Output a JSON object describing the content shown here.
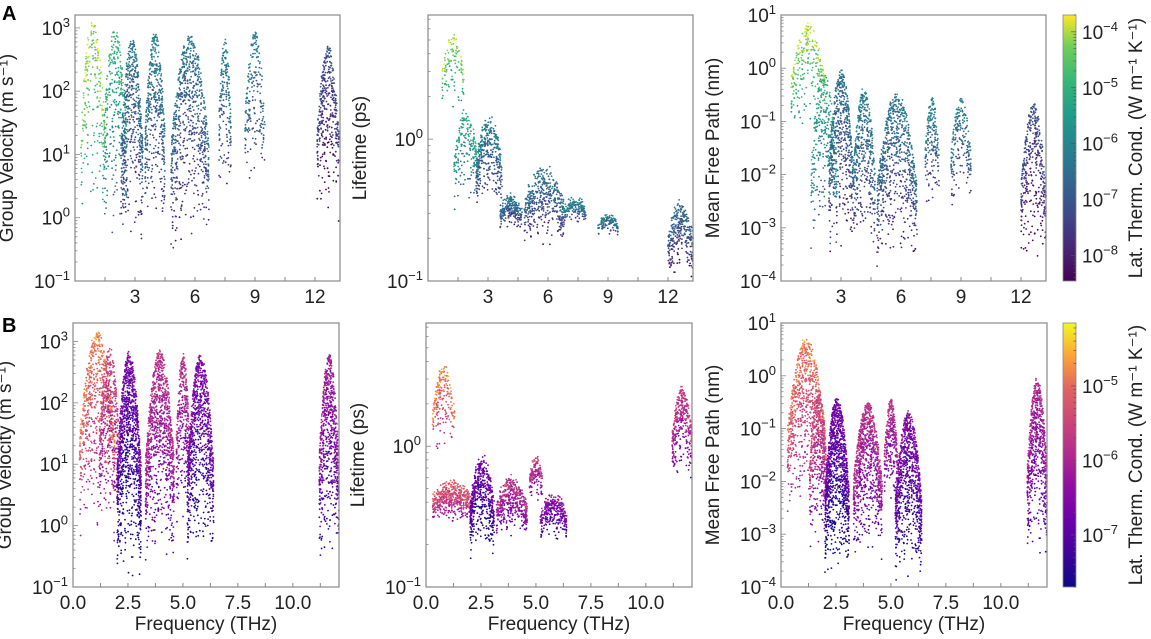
{
  "figure": {
    "panel_labels": [
      "A",
      "B"
    ]
  },
  "chart_data": [
    {
      "id": "A-velocity",
      "row": "A",
      "type": "scatter",
      "colormap": "viridis",
      "xlabel": "",
      "ylabel": "Group Velocity (m s⁻¹)",
      "xscale": "linear",
      "yscale": "log",
      "xlim": [
        0,
        13.25
      ],
      "ylim": [
        0.1,
        1600
      ],
      "xticks": [
        3,
        6,
        9,
        12
      ],
      "xtick_labels": [
        "3",
        "6",
        "9",
        "12"
      ],
      "yticks": [
        0.1,
        1,
        10,
        100,
        1000
      ],
      "ytick_labels": [
        [
          "10",
          "−1"
        ],
        [
          "10",
          "0"
        ],
        [
          "10",
          "1"
        ],
        [
          "10",
          "2"
        ],
        [
          "10",
          "3"
        ]
      ],
      "clusters": [
        {
          "x": [
            0.3,
            1.5
          ],
          "ymin": 0.6,
          "ymax": 1600,
          "peak": 1400,
          "c": 0.95,
          "n": 220
        },
        {
          "x": [
            1.4,
            2.6
          ],
          "ymin": 0.4,
          "ymax": 1300,
          "peak": 900,
          "c": 0.75,
          "n": 320
        },
        {
          "x": [
            2.3,
            3.4
          ],
          "ymin": 0.25,
          "ymax": 1000,
          "peak": 600,
          "c": 0.45,
          "n": 520
        },
        {
          "x": [
            3.5,
            4.5
          ],
          "ymin": 0.5,
          "ymax": 1300,
          "peak": 800,
          "c": 0.5,
          "n": 420
        },
        {
          "x": [
            4.8,
            6.7
          ],
          "ymin": 0.2,
          "ymax": 1100,
          "peak": 700,
          "c": 0.45,
          "n": 720
        },
        {
          "x": [
            7.2,
            7.8
          ],
          "ymin": 2,
          "ymax": 800,
          "peak": 700,
          "c": 0.5,
          "n": 180
        },
        {
          "x": [
            8.5,
            9.5
          ],
          "ymin": 2,
          "ymax": 900,
          "peak": 850,
          "c": 0.5,
          "n": 200
        },
        {
          "x": [
            12.1,
            13.2
          ],
          "ymin": 0.8,
          "ymax": 650,
          "peak": 500,
          "c": 0.3,
          "n": 380
        }
      ]
    },
    {
      "id": "A-lifetime",
      "row": "A",
      "type": "scatter",
      "colormap": "viridis",
      "xlabel": "",
      "ylabel": "Lifetime (ps)",
      "xscale": "linear",
      "yscale": "log",
      "xlim": [
        0,
        13.25
      ],
      "ylim": [
        0.1,
        7.5
      ],
      "xticks": [
        3,
        6,
        9,
        12
      ],
      "xtick_labels": [
        "3",
        "6",
        "9",
        "12"
      ],
      "yticks": [
        0.1,
        1
      ],
      "ytick_labels": [
        [
          "10",
          "−1"
        ],
        [
          "10",
          "0"
        ]
      ],
      "clusters": [
        {
          "x": [
            0.7,
            1.8
          ],
          "ymin": 1.5,
          "ymax": 7,
          "peak": 5,
          "c": 0.95,
          "n": 120
        },
        {
          "x": [
            1.3,
            2.5
          ],
          "ymin": 0.3,
          "ymax": 2.2,
          "peak": 1.4,
          "c": 0.7,
          "n": 200
        },
        {
          "x": [
            2.4,
            3.7
          ],
          "ymin": 0.3,
          "ymax": 2.2,
          "peak": 1.2,
          "c": 0.5,
          "n": 360
        },
        {
          "x": [
            3.6,
            4.7
          ],
          "ymin": 0.22,
          "ymax": 0.55,
          "peak": 0.35,
          "c": 0.45,
          "n": 220
        },
        {
          "x": [
            4.8,
            6.8
          ],
          "ymin": 0.17,
          "ymax": 1.1,
          "peak": 0.5,
          "c": 0.45,
          "n": 420
        },
        {
          "x": [
            6.8,
            7.9
          ],
          "ymin": 0.25,
          "ymax": 0.5,
          "peak": 0.35,
          "c": 0.55,
          "n": 150
        },
        {
          "x": [
            8.5,
            9.5
          ],
          "ymin": 0.2,
          "ymax": 0.34,
          "peak": 0.28,
          "c": 0.5,
          "n": 120
        },
        {
          "x": [
            12.0,
            13.25
          ],
          "ymin": 0.1,
          "ymax": 0.55,
          "peak": 0.3,
          "c": 0.4,
          "n": 300
        }
      ]
    },
    {
      "id": "A-mfp",
      "row": "A",
      "type": "scatter",
      "colormap": "viridis",
      "xlabel": "",
      "ylabel": "Mean Free Path (nm)",
      "xscale": "linear",
      "yscale": "log",
      "xlim": [
        0,
        13.25
      ],
      "ylim": [
        0.0001,
        10
      ],
      "xticks": [
        3,
        6,
        9,
        12
      ],
      "xtick_labels": [
        "3",
        "6",
        "9",
        "12"
      ],
      "yticks": [
        0.0001,
        0.001,
        0.01,
        0.1,
        1,
        10
      ],
      "ytick_labels": [
        [
          "10",
          "−4"
        ],
        [
          "10",
          "−3"
        ],
        [
          "10",
          "−2"
        ],
        [
          "10",
          "−1"
        ],
        [
          "10",
          "0"
        ],
        [
          "10",
          "1"
        ]
      ],
      "clusters": [
        {
          "x": [
            0.5,
            2.2
          ],
          "ymin": 0.05,
          "ymax": 10,
          "peak": 6,
          "c": 0.95,
          "n": 260
        },
        {
          "x": [
            1.5,
            2.8
          ],
          "ymin": 0.0003,
          "ymax": 1.5,
          "peak": 0.8,
          "c": 0.7,
          "n": 300
        },
        {
          "x": [
            2.4,
            3.6
          ],
          "ymin": 0.0003,
          "ymax": 1.2,
          "peak": 0.9,
          "c": 0.45,
          "n": 520
        },
        {
          "x": [
            3.6,
            4.7
          ],
          "ymin": 0.0003,
          "ymax": 0.6,
          "peak": 0.4,
          "c": 0.5,
          "n": 420
        },
        {
          "x": [
            4.8,
            6.8
          ],
          "ymin": 0.0001,
          "ymax": 0.5,
          "peak": 0.3,
          "c": 0.45,
          "n": 720
        },
        {
          "x": [
            7.2,
            7.9
          ],
          "ymin": 0.002,
          "ymax": 0.3,
          "peak": 0.28,
          "c": 0.5,
          "n": 180
        },
        {
          "x": [
            8.5,
            9.5
          ],
          "ymin": 0.002,
          "ymax": 0.3,
          "peak": 0.28,
          "c": 0.5,
          "n": 200
        },
        {
          "x": [
            12.0,
            13.25
          ],
          "ymin": 0.00015,
          "ymax": 0.3,
          "peak": 0.2,
          "c": 0.3,
          "n": 380
        }
      ]
    },
    {
      "id": "B-velocity",
      "row": "B",
      "type": "scatter",
      "colormap": "plasma",
      "xlabel": "Frequency (THz)",
      "ylabel": "Group Velocity (m s⁻¹)",
      "xscale": "linear",
      "yscale": "log",
      "xlim": [
        0,
        12.1
      ],
      "ylim": [
        0.1,
        2000
      ],
      "xticks": [
        0,
        2.5,
        5,
        7.5,
        10
      ],
      "xtick_labels": [
        "0.0",
        "2.5",
        "5.0",
        "7.5",
        "10.0"
      ],
      "yticks": [
        0.1,
        1,
        10,
        100,
        1000
      ],
      "ytick_labels": [
        [
          "10",
          "−1"
        ],
        [
          "10",
          "0"
        ],
        [
          "10",
          "1"
        ],
        [
          "10",
          "2"
        ],
        [
          "10",
          "3"
        ]
      ],
      "clusters": [
        {
          "x": [
            0.3,
            1.9
          ],
          "ymin": 0.5,
          "ymax": 2000,
          "peak": 1300,
          "c": 0.82,
          "n": 700
        },
        {
          "x": [
            1.2,
            2.1
          ],
          "ymin": 1,
          "ymax": 1200,
          "peak": 800,
          "c": 0.65,
          "n": 400
        },
        {
          "x": [
            2.0,
            3.1
          ],
          "ymin": 0.1,
          "ymax": 850,
          "peak": 600,
          "c": 0.3,
          "n": 1100
        },
        {
          "x": [
            3.3,
            4.6
          ],
          "ymin": 0.2,
          "ymax": 800,
          "peak": 700,
          "c": 0.55,
          "n": 1000
        },
        {
          "x": [
            4.7,
            5.3
          ],
          "ymin": 1,
          "ymax": 700,
          "peak": 650,
          "c": 0.55,
          "n": 350
        },
        {
          "x": [
            5.2,
            6.4
          ],
          "ymin": 0.15,
          "ymax": 650,
          "peak": 600,
          "c": 0.35,
          "n": 900
        },
        {
          "x": [
            11.2,
            12.1
          ],
          "ymin": 0.2,
          "ymax": 700,
          "peak": 600,
          "c": 0.45,
          "n": 700
        }
      ]
    },
    {
      "id": "B-lifetime",
      "row": "B",
      "type": "scatter",
      "colormap": "plasma",
      "xlabel": "Frequency (THz)",
      "ylabel": "Lifetime (ps)",
      "xscale": "linear",
      "yscale": "log",
      "xlim": [
        0,
        12.1
      ],
      "ylim": [
        0.1,
        7.5
      ],
      "xticks": [
        0,
        2.5,
        5,
        7.5,
        10
      ],
      "xtick_labels": [
        "0.0",
        "2.5",
        "5.0",
        "7.5",
        "10.0"
      ],
      "yticks": [
        0.1,
        1
      ],
      "ytick_labels": [
        [
          "10",
          "−1"
        ],
        [
          "10",
          "0"
        ]
      ],
      "clusters": [
        {
          "x": [
            0.3,
            1.3
          ],
          "ymin": 0.8,
          "ymax": 4.5,
          "peak": 3.5,
          "c": 0.85,
          "n": 200
        },
        {
          "x": [
            0.3,
            2.1
          ],
          "ymin": 0.28,
          "ymax": 0.9,
          "peak": 0.45,
          "c": 0.72,
          "n": 500
        },
        {
          "x": [
            2.0,
            3.1
          ],
          "ymin": 0.15,
          "ymax": 1.4,
          "peak": 0.7,
          "c": 0.3,
          "n": 500
        },
        {
          "x": [
            3.2,
            4.6
          ],
          "ymin": 0.22,
          "ymax": 0.9,
          "peak": 0.5,
          "c": 0.55,
          "n": 420
        },
        {
          "x": [
            4.7,
            5.3
          ],
          "ymin": 0.4,
          "ymax": 1.0,
          "peak": 0.8,
          "c": 0.62,
          "n": 150
        },
        {
          "x": [
            5.2,
            6.4
          ],
          "ymin": 0.2,
          "ymax": 0.65,
          "peak": 0.4,
          "c": 0.4,
          "n": 300
        },
        {
          "x": [
            11.2,
            12.1
          ],
          "ymin": 0.55,
          "ymax": 3,
          "peak": 2.5,
          "c": 0.6,
          "n": 350
        }
      ]
    },
    {
      "id": "B-mfp",
      "row": "B",
      "type": "scatter",
      "colormap": "plasma",
      "xlabel": "Frequency (THz)",
      "ylabel": "Mean Free Path (nm)",
      "xscale": "linear",
      "yscale": "log",
      "xlim": [
        0,
        12.1
      ],
      "ylim": [
        0.0001,
        10
      ],
      "xticks": [
        0,
        2.5,
        5,
        7.5,
        10
      ],
      "xtick_labels": [
        "0.0",
        "2.5",
        "5.0",
        "7.5",
        "10.0"
      ],
      "yticks": [
        0.0001,
        0.001,
        0.01,
        0.1,
        1,
        10
      ],
      "ytick_labels": [
        [
          "10",
          "−4"
        ],
        [
          "10",
          "−3"
        ],
        [
          "10",
          "−2"
        ],
        [
          "10",
          "−1"
        ],
        [
          "10",
          "0"
        ],
        [
          "10",
          "1"
        ]
      ],
      "clusters": [
        {
          "x": [
            0.3,
            2.0
          ],
          "ymin": 0.002,
          "ymax": 10,
          "peak": 4,
          "c": 0.8,
          "n": 800
        },
        {
          "x": [
            1.3,
            2.1
          ],
          "ymin": 0.0005,
          "ymax": 0.8,
          "peak": 0.5,
          "c": 0.65,
          "n": 400
        },
        {
          "x": [
            2.0,
            3.1
          ],
          "ymin": 0.0001,
          "ymax": 0.5,
          "peak": 0.35,
          "c": 0.3,
          "n": 1100
        },
        {
          "x": [
            3.3,
            4.6
          ],
          "ymin": 0.0003,
          "ymax": 0.35,
          "peak": 0.3,
          "c": 0.55,
          "n": 900
        },
        {
          "x": [
            4.7,
            5.3
          ],
          "ymin": 0.003,
          "ymax": 0.4,
          "peak": 0.35,
          "c": 0.55,
          "n": 300
        },
        {
          "x": [
            5.2,
            6.4
          ],
          "ymin": 0.0001,
          "ymax": 0.25,
          "peak": 0.2,
          "c": 0.35,
          "n": 900
        },
        {
          "x": [
            11.2,
            12.1
          ],
          "ymin": 0.0003,
          "ymax": 1,
          "peak": 0.9,
          "c": 0.5,
          "n": 700
        }
      ]
    }
  ],
  "colorbars": [
    {
      "row": "A",
      "colormap": "viridis",
      "label": "Lat. Therm. Cond. (W m⁻¹ K⁻¹)",
      "scale": "log",
      "range": [
        3.5e-09,
        0.0002
      ],
      "ticks": [
        1e-08,
        1e-07,
        1e-06,
        1e-05,
        0.0001
      ],
      "tick_labels": [
        [
          "10",
          "−8"
        ],
        [
          "10",
          "−7"
        ],
        [
          "10",
          "−6"
        ],
        [
          "10",
          "−5"
        ],
        [
          "10",
          "−4"
        ]
      ]
    },
    {
      "row": "B",
      "colormap": "plasma",
      "label": "Lat. Therm. Cond. (W m⁻¹ K⁻¹)",
      "scale": "log",
      "range": [
        2e-08,
        7e-05
      ],
      "ticks": [
        1e-07,
        1e-06,
        1e-05
      ],
      "tick_labels": [
        [
          "10",
          "−7"
        ],
        [
          "10",
          "−6"
        ],
        [
          "10",
          "−5"
        ]
      ]
    }
  ]
}
